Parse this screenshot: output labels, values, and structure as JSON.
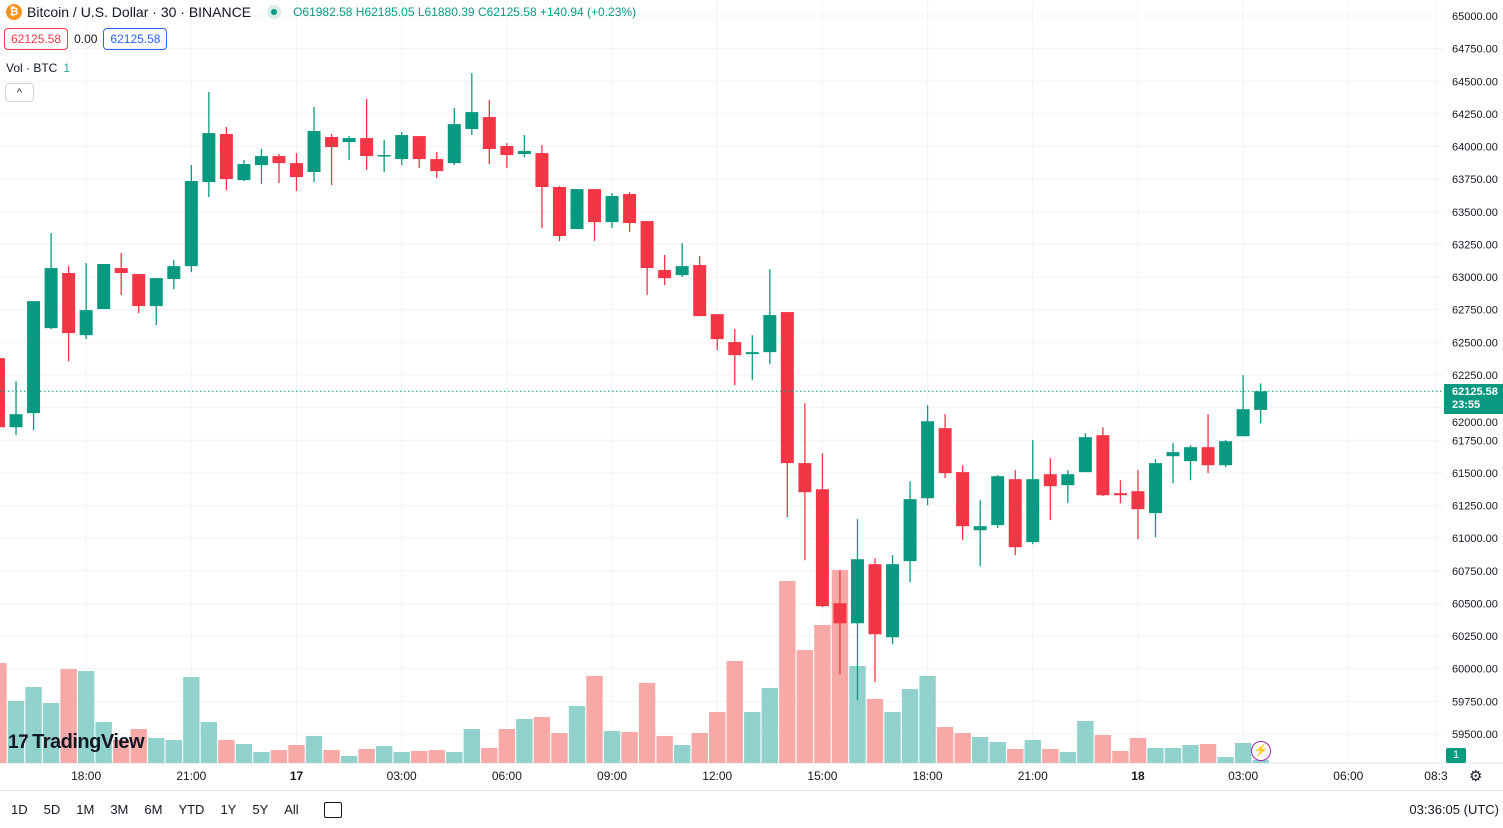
{
  "header": {
    "symbol": "Bitcoin / U.S. Dollar · 30 · BINANCE",
    "open": "O61982.58",
    "high": "H62185.05",
    "low": "L61880.39",
    "close": "C62125.58",
    "change": "+140.94 (+0.23%)",
    "sell_price": "62125.58",
    "spread": "0.00",
    "buy_price": "62125.58",
    "vol_label": "Vol · BTC",
    "vol_value": "1"
  },
  "price_tag": {
    "price": "62125.58",
    "countdown": "23:55"
  },
  "bottom": {
    "ranges": [
      "1D",
      "5D",
      "1M",
      "3M",
      "6M",
      "YTD",
      "1Y",
      "5Y",
      "All"
    ],
    "clock": "03:36:05 (UTC)"
  },
  "logo": "TradingView",
  "badge": "1",
  "colors": {
    "up": "#089981",
    "down": "#f23645",
    "vol_up": "#92d2cc",
    "vol_down": "#f7a9a7"
  },
  "chart_data": {
    "type": "candlestick",
    "interval": "30",
    "y_ticks": [
      "65000.00",
      "64750.00",
      "64500.00",
      "64250.00",
      "64000.00",
      "63750.00",
      "63500.00",
      "63250.00",
      "63000.00",
      "62750.00",
      "62500.00",
      "62250.00",
      "62000.00",
      "61750.00",
      "61500.00",
      "61250.00",
      "61000.00",
      "60750.00",
      "60500.00",
      "60250.00",
      "60000.00",
      "59750.00",
      "59500.00"
    ],
    "ylim": [
      59500,
      65000
    ],
    "x_ticks": [
      {
        "i": 5,
        "label": "18:00"
      },
      {
        "i": 11,
        "label": "21:00"
      },
      {
        "i": 17,
        "label": "17"
      },
      {
        "i": 23,
        "label": "03:00"
      },
      {
        "i": 29,
        "label": "06:00"
      },
      {
        "i": 35,
        "label": "09:00"
      },
      {
        "i": 41,
        "label": "12:00"
      },
      {
        "i": 47,
        "label": "15:00"
      },
      {
        "i": 53,
        "label": "18:00"
      },
      {
        "i": 59,
        "label": "21:00"
      },
      {
        "i": 65,
        "label": "18"
      },
      {
        "i": 71,
        "label": "03:00"
      },
      {
        "i": 77,
        "label": "06:00"
      },
      {
        "i": 82,
        "label": "08:3"
      }
    ],
    "last_price": 62125.58,
    "candles": [
      [
        62379,
        62379,
        61850,
        61850
      ],
      [
        61850,
        62203,
        61789,
        61950
      ],
      [
        61958,
        62816,
        61827,
        62816
      ],
      [
        62609,
        63337,
        62601,
        63069
      ],
      [
        63031,
        63084,
        62356,
        62571
      ],
      [
        62555,
        63107,
        62525,
        62747
      ],
      [
        62755,
        63100,
        62755,
        63100
      ],
      [
        63069,
        63184,
        62862,
        63031
      ],
      [
        63023,
        63023,
        62724,
        62778
      ],
      [
        62778,
        62992,
        62632,
        62992
      ],
      [
        62985,
        63130,
        62908,
        63084
      ],
      [
        63084,
        63858,
        63038,
        63736
      ],
      [
        63728,
        64418,
        63613,
        64103
      ],
      [
        64096,
        64149,
        63667,
        63751
      ],
      [
        63743,
        63896,
        63736,
        63866
      ],
      [
        63858,
        63981,
        63713,
        63927
      ],
      [
        63927,
        63943,
        63720,
        63873
      ],
      [
        63873,
        63950,
        63659,
        63766
      ],
      [
        63805,
        64303,
        63728,
        64119
      ],
      [
        64073,
        64096,
        63705,
        63996
      ],
      [
        64034,
        64080,
        63896,
        64065
      ],
      [
        64065,
        64364,
        63820,
        63927
      ],
      [
        63927,
        64050,
        63805,
        63935
      ],
      [
        63904,
        64111,
        63858,
        64088
      ],
      [
        64080,
        64080,
        63835,
        63904
      ],
      [
        63904,
        63958,
        63759,
        63812
      ],
      [
        63873,
        64295,
        63858,
        64172
      ],
      [
        64134,
        64563,
        64088,
        64264
      ],
      [
        64226,
        64356,
        63866,
        63981
      ],
      [
        64004,
        64027,
        63835,
        63935
      ],
      [
        63943,
        64088,
        63920,
        63966
      ],
      [
        63950,
        64011,
        63375,
        63690
      ],
      [
        63690,
        63697,
        63276,
        63314
      ],
      [
        63368,
        63674,
        63368,
        63674
      ],
      [
        63674,
        63674,
        63276,
        63421
      ],
      [
        63421,
        63644,
        63375,
        63621
      ],
      [
        63636,
        63651,
        63345,
        63414
      ],
      [
        63429,
        63429,
        62862,
        63069
      ],
      [
        63054,
        63169,
        62939,
        62992
      ],
      [
        63015,
        63260,
        63000,
        63084
      ],
      [
        63092,
        63161,
        62701,
        62701
      ],
      [
        62716,
        62716,
        62440,
        62525
      ],
      [
        62502,
        62602,
        62172,
        62402
      ],
      [
        62410,
        62555,
        62211,
        62425
      ],
      [
        62425,
        63061,
        62333,
        62709
      ],
      [
        62732,
        62732,
        61161,
        61575
      ],
      [
        61575,
        62034,
        60831,
        61352
      ],
      [
        61375,
        61651,
        60471,
        60479
      ],
      [
        60502,
        60755,
        59958,
        60348
      ],
      [
        60348,
        61146,
        59759,
        60839
      ],
      [
        60801,
        60847,
        59897,
        60264
      ],
      [
        60241,
        60870,
        60188,
        60801
      ],
      [
        60824,
        61436,
        60663,
        61299
      ],
      [
        61306,
        62019,
        61253,
        61896
      ],
      [
        61843,
        61950,
        61460,
        61498
      ],
      [
        61506,
        61559,
        60985,
        61092
      ],
      [
        61061,
        61291,
        60785,
        61092
      ],
      [
        61100,
        61483,
        61077,
        61475
      ],
      [
        61452,
        61521,
        60870,
        60931
      ],
      [
        60970,
        61751,
        60954,
        61452
      ],
      [
        61490,
        61613,
        61138,
        61398
      ],
      [
        61406,
        61521,
        61268,
        61490
      ],
      [
        61506,
        61805,
        61506,
        61774
      ],
      [
        61789,
        61850,
        61322,
        61329
      ],
      [
        61345,
        61444,
        61268,
        61329
      ],
      [
        61360,
        61521,
        60992,
        61222
      ],
      [
        61192,
        61605,
        61008,
        61575
      ],
      [
        61628,
        61728,
        61421,
        61659
      ],
      [
        61590,
        61713,
        61444,
        61697
      ],
      [
        61697,
        61950,
        61498,
        61559
      ],
      [
        61559,
        61751,
        61544,
        61743
      ],
      [
        61781,
        62249,
        61781,
        61988
      ],
      [
        61982.58,
        62185.05,
        61880.39,
        62125.58
      ]
    ],
    "volume_relative": [
      100,
      62,
      76,
      60,
      94,
      92,
      41,
      23,
      34,
      25,
      23,
      86,
      41,
      23,
      19,
      11,
      13,
      18,
      27,
      13,
      7,
      14,
      17,
      11,
      12,
      13,
      11,
      34,
      15,
      34,
      44,
      46,
      30,
      57,
      87,
      32,
      31,
      80,
      27,
      18,
      30,
      51,
      102,
      51,
      75,
      182,
      113,
      138,
      193,
      97,
      64,
      51,
      74,
      87,
      36,
      30,
      26,
      21,
      14,
      23,
      14,
      11,
      42,
      28,
      12,
      25,
      15,
      15,
      18,
      19,
      6,
      20,
      3
    ]
  }
}
